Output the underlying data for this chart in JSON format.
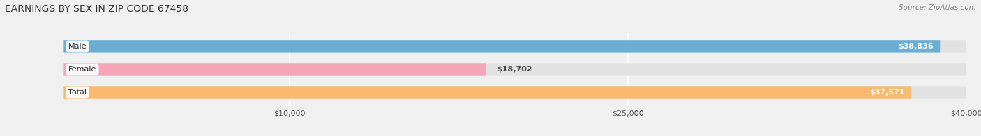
{
  "title": "EARNINGS BY SEX IN ZIP CODE 67458",
  "source": "Source: ZipAtlas.com",
  "categories": [
    "Male",
    "Female",
    "Total"
  ],
  "values": [
    38836,
    18702,
    37571
  ],
  "bar_colors": [
    "#6aaed6",
    "#f4a6b8",
    "#f9b96e"
  ],
  "bar_labels": [
    "$38,836",
    "$18,702",
    "$37,571"
  ],
  "xlim": [
    0,
    40000
  ],
  "xticks": [
    10000,
    25000,
    40000
  ],
  "xtick_labels": [
    "$10,000",
    "$25,000",
    "$40,000"
  ],
  "background_color": "#f0f0f0",
  "bar_bg_color": "#e2e2e2",
  "title_fontsize": 10,
  "bar_height": 0.52,
  "figsize": [
    14.06,
    1.96
  ],
  "dpi": 100
}
